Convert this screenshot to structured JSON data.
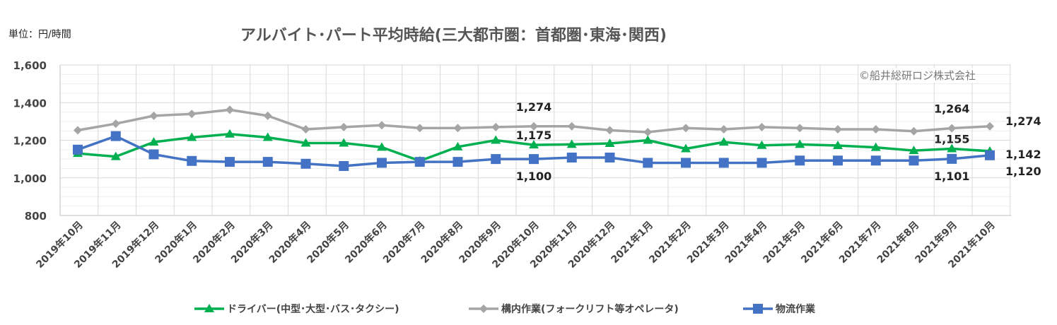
{
  "unit_label": "単位：円/時間",
  "copyright": "©船井総研ロジ株式会社",
  "chart_data": {
    "type": "line",
    "title": "アルバイト･パート平均時給(三大都市圏：首都圏･東海･関西)",
    "xlabel": "",
    "ylabel": "",
    "ylim": [
      800,
      1600
    ],
    "yticks": [
      "800",
      "1,000",
      "1,200",
      "1,400",
      "1,600"
    ],
    "grid": true,
    "legend": "bottom",
    "categories": [
      "2019年10月",
      "2019年11月",
      "2019年12月",
      "2020年1月",
      "2020年2月",
      "2020年3月",
      "2020年4月",
      "2020年5月",
      "2020年6月",
      "2020年7月",
      "2020年8月",
      "2020年9月",
      "2020年10月",
      "2020年11月",
      "2020年12月",
      "2021年1月",
      "2021年2月",
      "2021年3月",
      "2021年4月",
      "2021年5月",
      "2021年6月",
      "2021年7月",
      "2021年8月",
      "2021年9月",
      "2021年10月"
    ],
    "series": [
      {
        "name": "ドライバー(中型･大型･バス･タクシー)",
        "color": "#00b050",
        "marker": "triangle",
        "values": [
          1130,
          1113,
          1190,
          1215,
          1233,
          1215,
          1185,
          1185,
          1163,
          1090,
          1165,
          1200,
          1175,
          1178,
          1183,
          1200,
          1155,
          1190,
          1173,
          1178,
          1172,
          1162,
          1145,
          1155,
          1142
        ]
      },
      {
        "name": "構内作業(フォークリフト等オペレータ)",
        "color": "#a5a5a5",
        "marker": "diamond",
        "values": [
          1253,
          1288,
          1330,
          1340,
          1362,
          1330,
          1258,
          1270,
          1280,
          1265,
          1265,
          1270,
          1274,
          1274,
          1253,
          1243,
          1265,
          1258,
          1270,
          1265,
          1258,
          1258,
          1248,
          1264,
          1274
        ]
      },
      {
        "name": "物流作業",
        "color": "#4472c4",
        "marker": "square",
        "values": [
          1150,
          1222,
          1125,
          1090,
          1085,
          1085,
          1075,
          1063,
          1080,
          1085,
          1085,
          1100,
          1100,
          1108,
          1108,
          1080,
          1080,
          1080,
          1080,
          1092,
          1092,
          1092,
          1092,
          1101,
          1120
        ]
      }
    ],
    "data_labels": [
      {
        "text": "1,274",
        "series": 1,
        "index": 12
      },
      {
        "text": "1,175",
        "series": 0,
        "index": 12
      },
      {
        "text": "1,100",
        "series": 2,
        "index": 12
      },
      {
        "text": "1,264",
        "series": 1,
        "index": 23
      },
      {
        "text": "1,155",
        "series": 0,
        "index": 23
      },
      {
        "text": "1,101",
        "series": 2,
        "index": 23
      },
      {
        "text": "1,274",
        "series": 1,
        "index": 24
      },
      {
        "text": "1,142",
        "series": 0,
        "index": 24
      },
      {
        "text": "1,120",
        "series": 2,
        "index": 24
      }
    ]
  }
}
